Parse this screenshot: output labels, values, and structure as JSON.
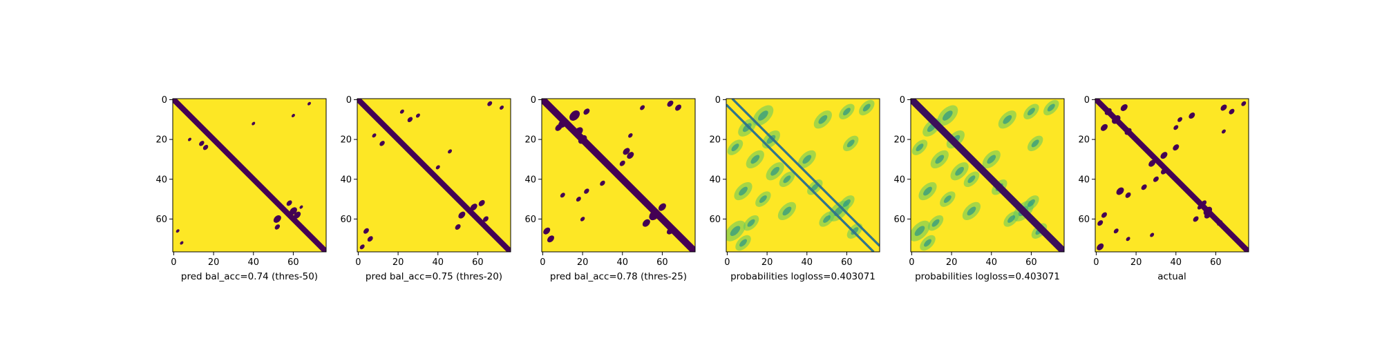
{
  "chart_data": [
    {
      "type": "heatmap",
      "xlabel": "pred bal_acc=0.74 (thres-50)",
      "xticks": [
        0,
        20,
        40,
        60
      ],
      "yticks": [
        0,
        20,
        40,
        60
      ],
      "xlim": [
        0,
        77
      ],
      "ylim": [
        77,
        0
      ],
      "colormap": "viridis",
      "value_range": [
        0,
        1
      ],
      "matrix_size": 77,
      "diagonal_band_halfwidth": 2,
      "blobs": [
        [
          2,
          68,
          1.0
        ],
        [
          8,
          60,
          1.0
        ],
        [
          12,
          40,
          1.0
        ],
        [
          20,
          8,
          1.0
        ],
        [
          22,
          14,
          1.5
        ],
        [
          24,
          16,
          1.5
        ],
        [
          56,
          60,
          2.2
        ],
        [
          60,
          52,
          2.2
        ],
        [
          58,
          62,
          2.0
        ],
        [
          52,
          58,
          1.6
        ],
        [
          64,
          52,
          1.5
        ],
        [
          66,
          2,
          1.0
        ],
        [
          72,
          4,
          1.0
        ],
        [
          54,
          64,
          1.0
        ]
      ]
    },
    {
      "type": "heatmap",
      "xlabel": "pred bal_acc=0.75 (thres-20)",
      "xticks": [
        0,
        20,
        40,
        60
      ],
      "yticks": [
        0,
        20,
        40,
        60
      ],
      "xlim": [
        0,
        77
      ],
      "ylim": [
        77,
        0
      ],
      "colormap": "viridis",
      "value_range": [
        0,
        1
      ],
      "matrix_size": 77,
      "diagonal_band_halfwidth": 2,
      "blobs": [
        [
          6,
          22,
          1.2
        ],
        [
          8,
          30,
          1.2
        ],
        [
          10,
          26,
          1.5
        ],
        [
          18,
          8,
          1.2
        ],
        [
          22,
          12,
          1.5
        ],
        [
          26,
          46,
          1.2
        ],
        [
          34,
          40,
          1.2
        ],
        [
          2,
          66,
          1.4
        ],
        [
          4,
          72,
          1.2
        ],
        [
          54,
          58,
          2.0
        ],
        [
          58,
          52,
          2.0
        ],
        [
          52,
          62,
          1.8
        ],
        [
          60,
          64,
          1.6
        ],
        [
          64,
          50,
          1.6
        ],
        [
          66,
          4,
          1.6
        ],
        [
          70,
          6,
          1.6
        ],
        [
          74,
          2,
          1.4
        ]
      ]
    },
    {
      "type": "heatmap",
      "xlabel": "pred bal_acc=0.78 (thres-25)",
      "xticks": [
        0,
        20,
        40,
        60
      ],
      "yticks": [
        0,
        20,
        40,
        60
      ],
      "xlim": [
        0,
        77
      ],
      "ylim": [
        77,
        0
      ],
      "colormap": "viridis",
      "value_range": [
        0,
        1
      ],
      "matrix_size": 77,
      "diagonal_band_halfwidth": 2.5,
      "blobs": [
        [
          8,
          16,
          3.0
        ],
        [
          12,
          10,
          2.5
        ],
        [
          16,
          18,
          2.5
        ],
        [
          6,
          22,
          1.8
        ],
        [
          20,
          20,
          2.5
        ],
        [
          4,
          50,
          1.4
        ],
        [
          18,
          44,
          1.3
        ],
        [
          26,
          42,
          2.0
        ],
        [
          28,
          44,
          2.0
        ],
        [
          32,
          40,
          1.6
        ],
        [
          14,
          8,
          2.0
        ],
        [
          2,
          64,
          1.8
        ],
        [
          4,
          68,
          1.8
        ],
        [
          58,
          56,
          3.0
        ],
        [
          54,
          60,
          2.2
        ],
        [
          62,
          52,
          2.2
        ],
        [
          66,
          64,
          2.0
        ],
        [
          66,
          2,
          2.0
        ],
        [
          70,
          4,
          2.0
        ],
        [
          48,
          10,
          1.4
        ],
        [
          42,
          30,
          1.5
        ],
        [
          46,
          22,
          1.5
        ],
        [
          50,
          18,
          1.4
        ],
        [
          60,
          20,
          1.3
        ]
      ]
    },
    {
      "type": "heatmap",
      "xlabel": "probabilities logloss=0.403071",
      "xticks": [
        0,
        20,
        40,
        60
      ],
      "yticks": [
        0,
        20,
        40,
        60
      ],
      "xlim": [
        0,
        77
      ],
      "ylim": [
        77,
        0
      ],
      "colormap": "viridis",
      "value_range": [
        0,
        1
      ],
      "matrix_size": 77,
      "diagonal_band_halfwidth": 0,
      "twin_lines": true,
      "blobs": [
        [
          8,
          18,
          4.0
        ],
        [
          14,
          10,
          3.5
        ],
        [
          20,
          22,
          3.5
        ],
        [
          24,
          4,
          3.0
        ],
        [
          6,
          60,
          3.0
        ],
        [
          10,
          48,
          3.5
        ],
        [
          30,
          14,
          3.5
        ],
        [
          36,
          24,
          3.5
        ],
        [
          46,
          8,
          3.5
        ],
        [
          50,
          18,
          3.0
        ],
        [
          56,
          30,
          3.5
        ],
        [
          62,
          12,
          3.0
        ],
        [
          30,
          40,
          3.5
        ],
        [
          40,
          30,
          3.0
        ],
        [
          44,
          44,
          3.0
        ],
        [
          56,
          56,
          4.0
        ],
        [
          60,
          50,
          3.0
        ],
        [
          52,
          60,
          3.0
        ],
        [
          66,
          64,
          3.0
        ],
        [
          66,
          4,
          4.0
        ],
        [
          72,
          8,
          3.0
        ],
        [
          22,
          62,
          3.0
        ],
        [
          4,
          70,
          3.0
        ]
      ]
    },
    {
      "type": "heatmap",
      "xlabel": "probabilities logloss=0.403071",
      "xticks": [
        0,
        20,
        40,
        60
      ],
      "yticks": [
        0,
        20,
        40,
        60
      ],
      "xlim": [
        0,
        77
      ],
      "ylim": [
        77,
        0
      ],
      "colormap": "viridis",
      "value_range": [
        0,
        1
      ],
      "matrix_size": 77,
      "diagonal_band_halfwidth": 2.5,
      "blobs": [
        [
          8,
          18,
          4.0
        ],
        [
          14,
          10,
          3.5
        ],
        [
          20,
          22,
          3.5
        ],
        [
          24,
          4,
          3.0
        ],
        [
          6,
          60,
          3.0
        ],
        [
          10,
          48,
          3.5
        ],
        [
          30,
          14,
          3.5
        ],
        [
          36,
          24,
          3.5
        ],
        [
          46,
          8,
          3.5
        ],
        [
          50,
          18,
          3.0
        ],
        [
          56,
          30,
          3.5
        ],
        [
          62,
          12,
          3.0
        ],
        [
          30,
          40,
          3.5
        ],
        [
          40,
          30,
          3.0
        ],
        [
          44,
          44,
          3.0
        ],
        [
          56,
          56,
          4.0
        ],
        [
          60,
          50,
          3.0
        ],
        [
          52,
          60,
          3.0
        ],
        [
          66,
          64,
          3.0
        ],
        [
          66,
          4,
          4.0
        ],
        [
          72,
          8,
          3.0
        ],
        [
          22,
          62,
          3.0
        ],
        [
          4,
          70,
          3.0
        ]
      ]
    },
    {
      "type": "heatmap",
      "xlabel": "actual",
      "xticks": [
        0,
        20,
        40,
        60
      ],
      "yticks": [
        0,
        20,
        40,
        60
      ],
      "xlim": [
        0,
        77
      ],
      "ylim": [
        77,
        0
      ],
      "colormap": "viridis",
      "value_range": [
        0,
        1
      ],
      "matrix_size": 77,
      "diagonal_band_halfwidth": 2,
      "blobs": [
        [
          6,
          6,
          2.0
        ],
        [
          10,
          10,
          2.5
        ],
        [
          4,
          14,
          2.0
        ],
        [
          14,
          4,
          2.0
        ],
        [
          16,
          16,
          2.0
        ],
        [
          8,
          48,
          1.8
        ],
        [
          10,
          42,
          1.4
        ],
        [
          14,
          40,
          1.4
        ],
        [
          4,
          64,
          1.8
        ],
        [
          6,
          68,
          1.6
        ],
        [
          2,
          74,
          1.4
        ],
        [
          16,
          64,
          1.2
        ],
        [
          24,
          40,
          1.8
        ],
        [
          28,
          34,
          2.0
        ],
        [
          32,
          28,
          2.0
        ],
        [
          36,
          34,
          1.8
        ],
        [
          40,
          30,
          1.6
        ],
        [
          44,
          24,
          1.6
        ],
        [
          46,
          12,
          2.2
        ],
        [
          48,
          16,
          1.6
        ],
        [
          54,
          52,
          1.4
        ],
        [
          56,
          56,
          2.5
        ],
        [
          58,
          56,
          2.0
        ],
        [
          60,
          50,
          1.6
        ],
        [
          62,
          62,
          1.6
        ],
        [
          58,
          4,
          1.6
        ],
        [
          62,
          2,
          1.6
        ],
        [
          66,
          10,
          1.4
        ],
        [
          70,
          16,
          1.2
        ],
        [
          74,
          2,
          2.0
        ],
        [
          68,
          28,
          1.2
        ],
        [
          52,
          54,
          1.6
        ]
      ]
    }
  ]
}
